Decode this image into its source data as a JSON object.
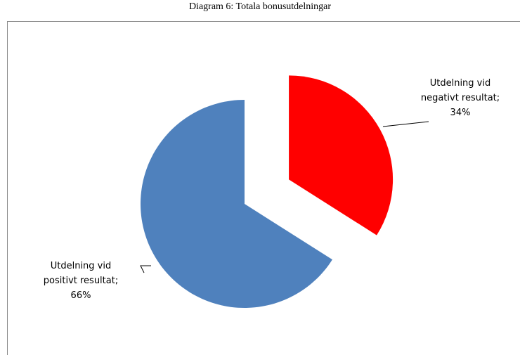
{
  "chart_data": {
    "type": "pie",
    "title": "Diagram 6: Totala bonusutdelningar",
    "values": [
      34,
      66
    ],
    "value_labels": [
      "Utdelning vid negativt resultat; 34%",
      "Utdelning vid positivt resultat; 66%"
    ],
    "colors": [
      "#ff0000",
      "#4f81bd"
    ]
  }
}
